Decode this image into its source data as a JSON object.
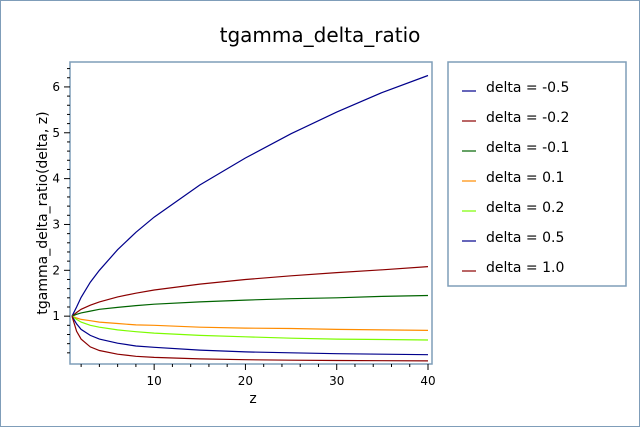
{
  "chart_data": {
    "type": "line",
    "title": "tgamma_delta_ratio",
    "xlabel": "z",
    "ylabel": "tgamma_delta_ratio(delta, z)",
    "xlim": [
      1,
      40
    ],
    "ylim": [
      0,
      6.5
    ],
    "xticks": [
      10,
      20,
      30,
      40
    ],
    "yticks": [
      1,
      2,
      3,
      4,
      5,
      6
    ],
    "grid": false,
    "legend_position": "right",
    "series": [
      {
        "name": "delta = -0.5",
        "color": "#00008b",
        "x": [
          1,
          1.5,
          2,
          3,
          4,
          6,
          8,
          10,
          15,
          20,
          25,
          30,
          35,
          40
        ],
        "y": [
          1.0,
          1.2,
          1.41,
          1.74,
          2.0,
          2.45,
          2.83,
          3.16,
          3.86,
          4.45,
          4.98,
          5.45,
          5.88,
          6.25
        ]
      },
      {
        "name": "delta = -0.2",
        "color": "#8b0000",
        "x": [
          1,
          1.5,
          2,
          3,
          4,
          6,
          8,
          10,
          15,
          20,
          25,
          30,
          35,
          40
        ],
        "y": [
          1.0,
          1.08,
          1.15,
          1.24,
          1.31,
          1.42,
          1.5,
          1.57,
          1.7,
          1.8,
          1.88,
          1.95,
          2.01,
          2.08
        ]
      },
      {
        "name": "delta = -0.1",
        "color": "#006400",
        "x": [
          1,
          1.5,
          2,
          3,
          4,
          6,
          8,
          10,
          15,
          20,
          25,
          30,
          35,
          40
        ],
        "y": [
          1.0,
          1.04,
          1.07,
          1.11,
          1.15,
          1.19,
          1.23,
          1.26,
          1.31,
          1.35,
          1.38,
          1.4,
          1.43,
          1.45
        ]
      },
      {
        "name": "delta = 0.1",
        "color": "#ff8c00",
        "x": [
          1,
          1.5,
          2,
          3,
          4,
          6,
          8,
          10,
          15,
          20,
          25,
          30,
          35,
          40
        ],
        "y": [
          1.0,
          0.96,
          0.93,
          0.9,
          0.87,
          0.84,
          0.81,
          0.8,
          0.76,
          0.74,
          0.73,
          0.71,
          0.7,
          0.69
        ]
      },
      {
        "name": "delta = 0.2",
        "color": "#7cfc00",
        "x": [
          1,
          1.5,
          2,
          3,
          4,
          6,
          8,
          10,
          15,
          20,
          25,
          30,
          35,
          40
        ],
        "y": [
          1.0,
          0.93,
          0.87,
          0.8,
          0.76,
          0.7,
          0.66,
          0.63,
          0.58,
          0.55,
          0.52,
          0.5,
          0.49,
          0.48
        ]
      },
      {
        "name": "delta = 0.5",
        "color": "#00008b",
        "x": [
          1,
          1.5,
          2,
          3,
          4,
          6,
          8,
          10,
          15,
          20,
          25,
          30,
          35,
          40
        ],
        "y": [
          1.0,
          0.83,
          0.71,
          0.58,
          0.5,
          0.41,
          0.35,
          0.32,
          0.26,
          0.22,
          0.2,
          0.18,
          0.17,
          0.16
        ]
      },
      {
        "name": "delta = 1.0",
        "color": "#8b0000",
        "x": [
          1,
          1.5,
          2,
          3,
          4,
          6,
          8,
          10,
          15,
          20,
          25,
          30,
          35,
          40
        ],
        "y": [
          1.0,
          0.67,
          0.5,
          0.33,
          0.25,
          0.17,
          0.125,
          0.1,
          0.067,
          0.05,
          0.04,
          0.033,
          0.029,
          0.025
        ]
      }
    ]
  }
}
